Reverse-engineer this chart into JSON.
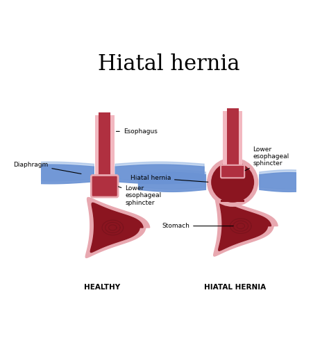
{
  "title": "Hiatal hernia",
  "title_fontsize": 22,
  "title_font": "DejaVu Serif",
  "bg_color": "#ffffff",
  "label_healthy": "HEALTHY",
  "label_hernia": "HIATAL HERNIA",
  "labels": {
    "diaphragm": "Diaphragm",
    "esophagus": "Esophagus",
    "lower_esophageal_sphincter_healthy": "Lower\nesophageal\nsphincter",
    "lower_esophageal_sphincter_hernia": "Lower\nesophageal\nsphincter",
    "hiatal_hernia": "Hiatal hernia",
    "stomach": "Stomach"
  },
  "colors": {
    "esophagus_pink": "#f2b8c0",
    "esophagus_dark": "#b03040",
    "diaphragm_light": "#8aaee0",
    "diaphragm_mid": "#6b93d4",
    "stomach_pink": "#e8a8b0",
    "stomach_red": "#8b1520",
    "stomach_dark_red": "#6a1018",
    "swirl": "#5a0e16"
  }
}
